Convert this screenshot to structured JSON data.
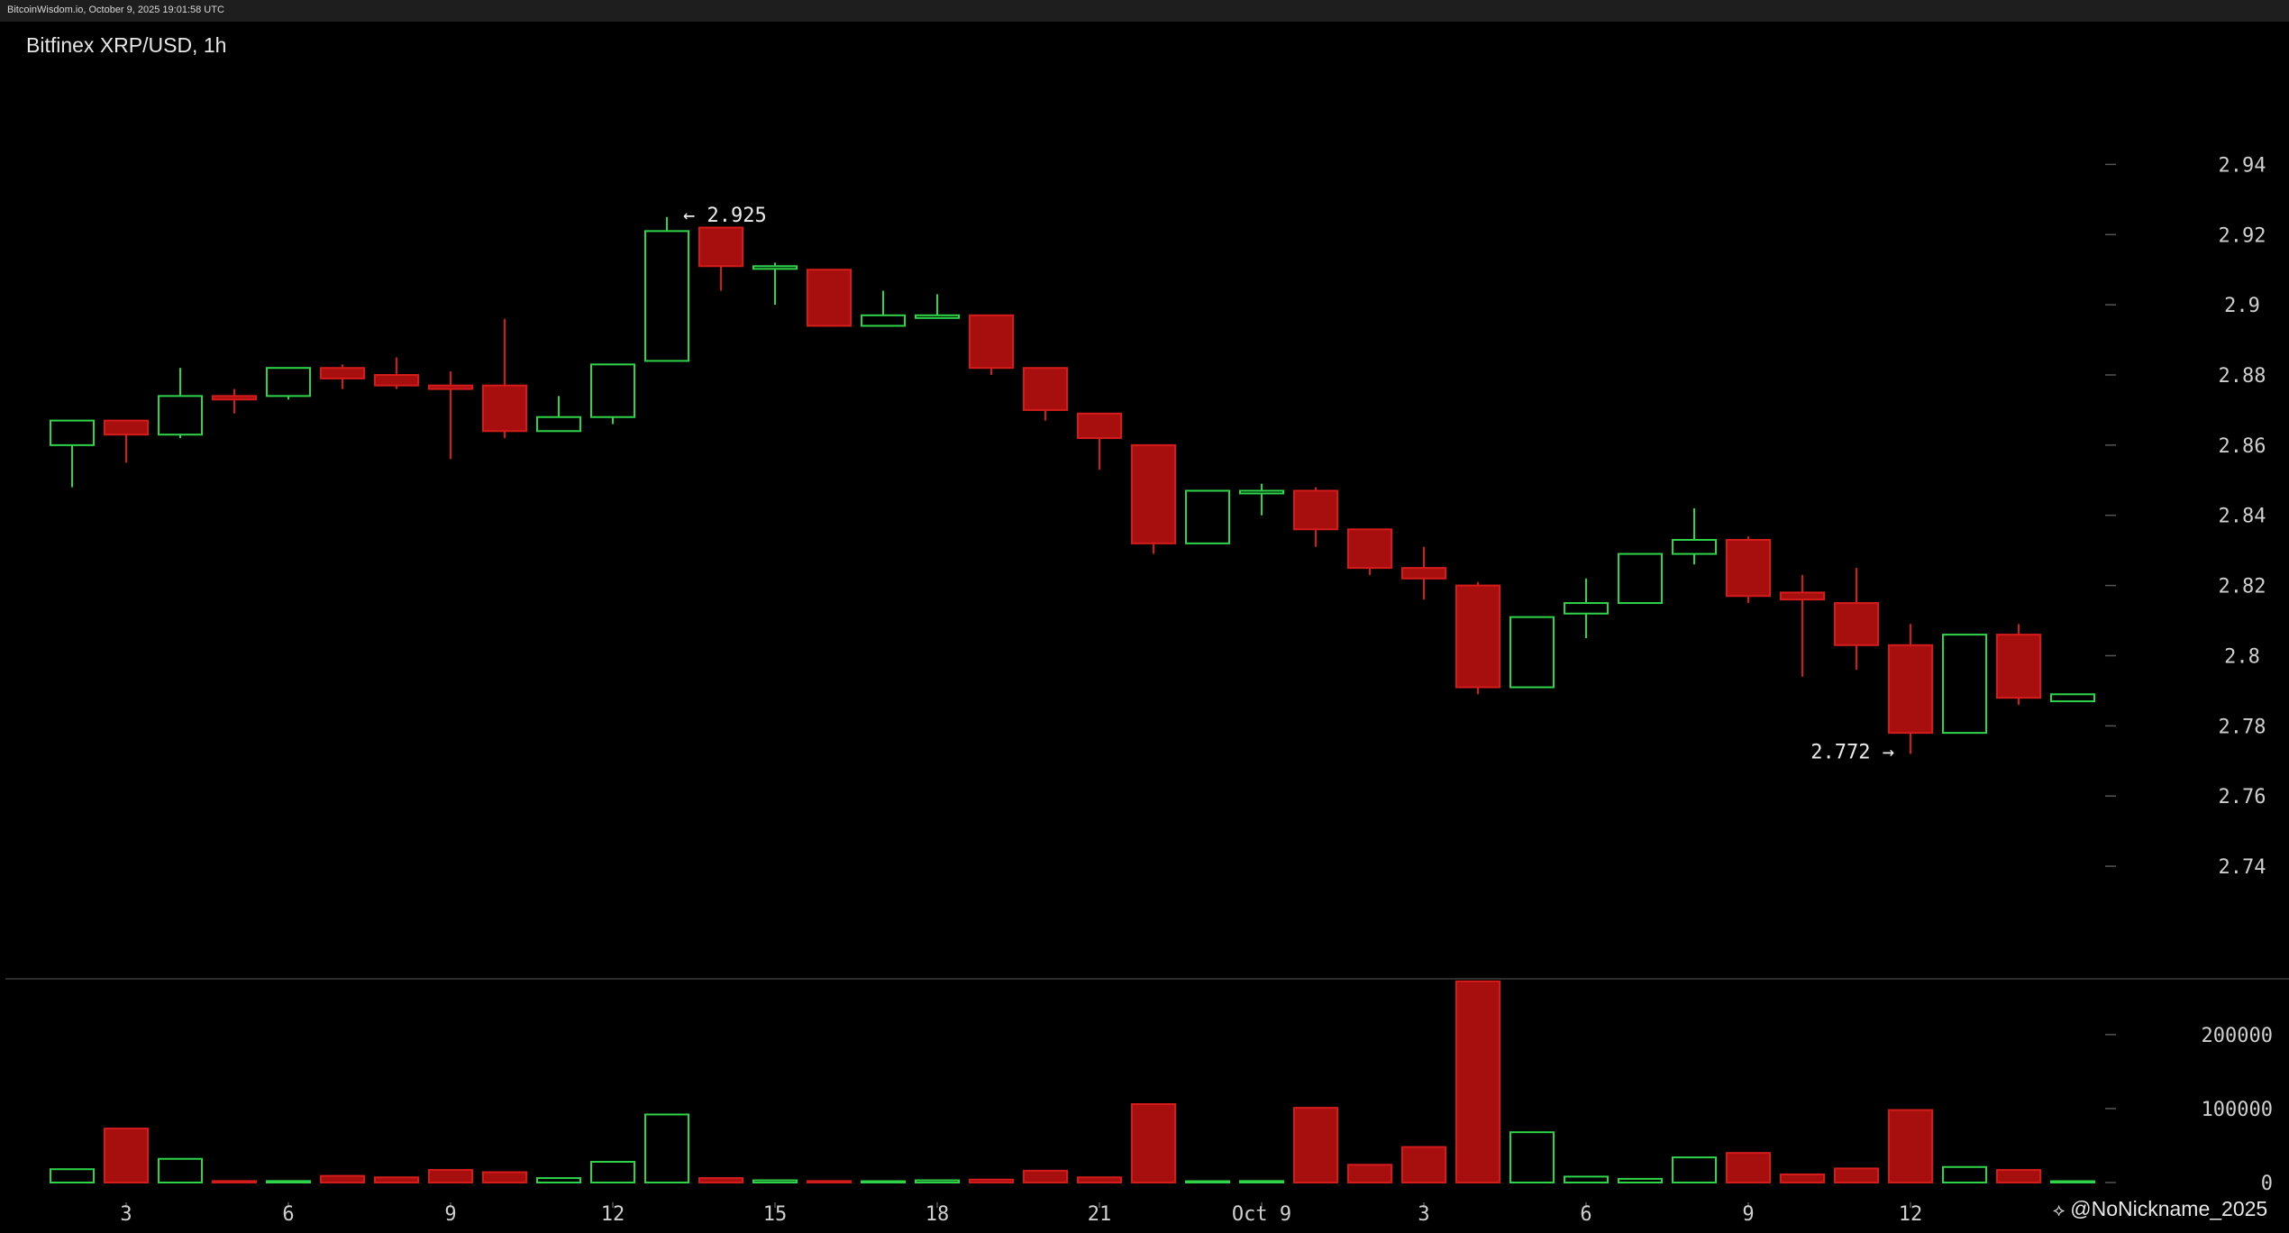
{
  "header": {
    "source_line": "BitcoinWisdom.io, October 9, 2025 19:01:58 UTC"
  },
  "watermark": {
    "icon": "binance-square-icon",
    "text": "@NoNickname_2025"
  },
  "colors": {
    "up": "#2fd44a",
    "down": "#a70f0f",
    "down_edge": "#d41c1c",
    "background": "#000000",
    "panel_bg": "#1e1e1e"
  },
  "chart_data": {
    "type": "candlestick",
    "title": "Bitfinex XRP/USD, 1h",
    "price_axis": {
      "ticks": [
        "2.94",
        "2.92",
        "2.9",
        "2.88",
        "2.86",
        "2.84",
        "2.82",
        "2.8",
        "2.78",
        "2.76",
        "2.74"
      ],
      "ylim": [
        2.73,
        2.955
      ]
    },
    "volume_axis": {
      "ticks": [
        "200000",
        "100000",
        "0"
      ],
      "ylim": [
        0,
        290000
      ]
    },
    "x_ticks": [
      {
        "index": 1,
        "label": "3"
      },
      {
        "index": 4,
        "label": "6"
      },
      {
        "index": 7,
        "label": "9"
      },
      {
        "index": 10,
        "label": "12"
      },
      {
        "index": 13,
        "label": "15"
      },
      {
        "index": 16,
        "label": "18"
      },
      {
        "index": 19,
        "label": "21"
      },
      {
        "index": 22,
        "label": "Oct 9"
      },
      {
        "index": 25,
        "label": "3"
      },
      {
        "index": 28,
        "label": "6"
      },
      {
        "index": 31,
        "label": "9"
      },
      {
        "index": 34,
        "label": "12"
      }
    ],
    "annotations": [
      {
        "candle_index": 11,
        "price": 2.925,
        "text": "← 2.925",
        "anchor": "high"
      },
      {
        "candle_index": 34,
        "price": 2.772,
        "text": "2.772 →",
        "anchor": "low"
      }
    ],
    "candles": [
      {
        "o": 2.86,
        "h": 2.867,
        "l": 2.848,
        "c": 2.867,
        "v": 18000
      },
      {
        "o": 2.867,
        "h": 2.867,
        "l": 2.855,
        "c": 2.863,
        "v": 73000
      },
      {
        "o": 2.863,
        "h": 2.882,
        "l": 2.862,
        "c": 2.874,
        "v": 32000
      },
      {
        "o": 2.874,
        "h": 2.876,
        "l": 2.869,
        "c": 2.873,
        "v": 2000
      },
      {
        "o": 2.874,
        "h": 2.882,
        "l": 2.873,
        "c": 2.882,
        "v": 2000
      },
      {
        "o": 2.882,
        "h": 2.883,
        "l": 2.876,
        "c": 2.879,
        "v": 9000
      },
      {
        "o": 2.88,
        "h": 2.885,
        "l": 2.876,
        "c": 2.877,
        "v": 7000
      },
      {
        "o": 2.877,
        "h": 2.881,
        "l": 2.856,
        "c": 2.876,
        "v": 17000
      },
      {
        "o": 2.877,
        "h": 2.896,
        "l": 2.862,
        "c": 2.864,
        "v": 14000
      },
      {
        "o": 2.864,
        "h": 2.874,
        "l": 2.864,
        "c": 2.868,
        "v": 6000
      },
      {
        "o": 2.868,
        "h": 2.883,
        "l": 2.866,
        "c": 2.883,
        "v": 28000
      },
      {
        "o": 2.884,
        "h": 2.925,
        "l": 2.884,
        "c": 2.921,
        "v": 92000
      },
      {
        "o": 2.922,
        "h": 2.922,
        "l": 2.904,
        "c": 2.911,
        "v": 6000
      },
      {
        "o": 2.911,
        "h": 2.912,
        "l": 2.9,
        "c": 2.911,
        "v": 3000
      },
      {
        "o": 2.91,
        "h": 2.91,
        "l": 2.894,
        "c": 2.894,
        "v": 2000
      },
      {
        "o": 2.894,
        "h": 2.904,
        "l": 2.894,
        "c": 2.897,
        "v": 1500
      },
      {
        "o": 2.897,
        "h": 2.903,
        "l": 2.897,
        "c": 2.897,
        "v": 3000
      },
      {
        "o": 2.897,
        "h": 2.897,
        "l": 2.88,
        "c": 2.882,
        "v": 4000
      },
      {
        "o": 2.882,
        "h": 2.882,
        "l": 2.867,
        "c": 2.87,
        "v": 16000
      },
      {
        "o": 2.869,
        "h": 2.869,
        "l": 2.853,
        "c": 2.862,
        "v": 7000
      },
      {
        "o": 2.86,
        "h": 2.86,
        "l": 2.829,
        "c": 2.832,
        "v": 106000
      },
      {
        "o": 2.832,
        "h": 2.847,
        "l": 2.832,
        "c": 2.847,
        "v": 1500
      },
      {
        "o": 2.847,
        "h": 2.849,
        "l": 2.84,
        "c": 2.847,
        "v": 2000
      },
      {
        "o": 2.847,
        "h": 2.848,
        "l": 2.831,
        "c": 2.836,
        "v": 101000
      },
      {
        "o": 2.836,
        "h": 2.836,
        "l": 2.823,
        "c": 2.825,
        "v": 24000
      },
      {
        "o": 2.825,
        "h": 2.831,
        "l": 2.816,
        "c": 2.822,
        "v": 48000
      },
      {
        "o": 2.82,
        "h": 2.821,
        "l": 2.789,
        "c": 2.791,
        "v": 272000
      },
      {
        "o": 2.791,
        "h": 2.811,
        "l": 2.791,
        "c": 2.811,
        "v": 68000
      },
      {
        "o": 2.812,
        "h": 2.822,
        "l": 2.805,
        "c": 2.815,
        "v": 8000
      },
      {
        "o": 2.815,
        "h": 2.829,
        "l": 2.815,
        "c": 2.829,
        "v": 5000
      },
      {
        "o": 2.829,
        "h": 2.842,
        "l": 2.826,
        "c": 2.833,
        "v": 34000
      },
      {
        "o": 2.833,
        "h": 2.834,
        "l": 2.815,
        "c": 2.817,
        "v": 40000
      },
      {
        "o": 2.818,
        "h": 2.823,
        "l": 2.794,
        "c": 2.816,
        "v": 11000
      },
      {
        "o": 2.815,
        "h": 2.825,
        "l": 2.796,
        "c": 2.803,
        "v": 19000
      },
      {
        "o": 2.803,
        "h": 2.809,
        "l": 2.772,
        "c": 2.778,
        "v": 98000
      },
      {
        "o": 2.778,
        "h": 2.806,
        "l": 2.778,
        "c": 2.806,
        "v": 21000
      },
      {
        "o": 2.806,
        "h": 2.809,
        "l": 2.786,
        "c": 2.788,
        "v": 17000
      },
      {
        "o": 2.787,
        "h": 2.789,
        "l": 2.787,
        "c": 2.789,
        "v": 1000
      }
    ]
  }
}
